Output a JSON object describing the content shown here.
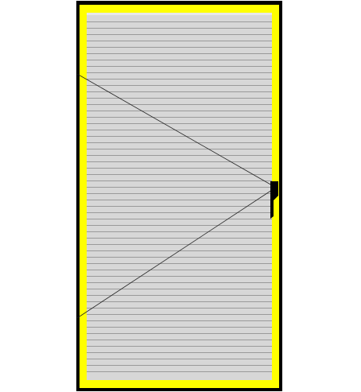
{
  "diagram": {
    "type": "door-elevation",
    "panel": "horizontal-slat-screen",
    "opening": "hinged-left-swing",
    "handle": "right-side-latch",
    "colors": {
      "outer_frame": "#000000",
      "sash": "#ffff00",
      "infill": "#d7d7d7",
      "slat_line": "#9a9a9a",
      "sash_edge": "#e5e500",
      "swing_line": "#222222",
      "handle": "#000000",
      "background": "#ffffff"
    }
  }
}
